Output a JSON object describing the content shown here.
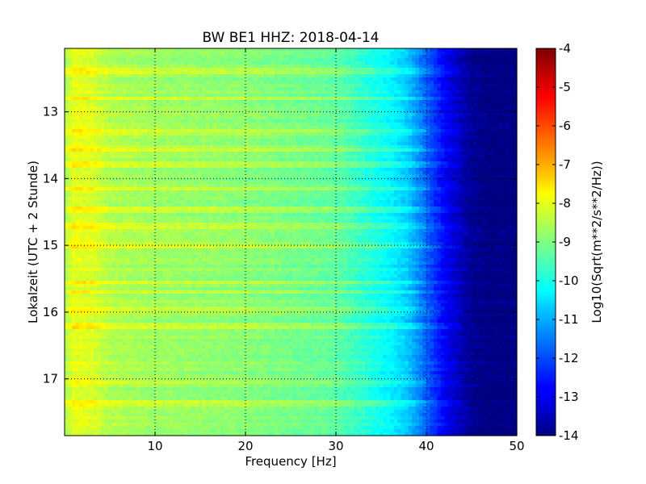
{
  "chart_data": {
    "type": "heatmap",
    "title": "BW BE1 HHZ: 2018-04-14",
    "xlabel": "Frequency [Hz]",
    "ylabel": "Lokalzeit (UTC + 2 Stunde)",
    "xlim": [
      0,
      50
    ],
    "ylim": [
      12.05,
      17.85
    ],
    "y_inverted": true,
    "x_ticks": [
      "10",
      "20",
      "30",
      "40",
      "50"
    ],
    "y_ticks": [
      "13",
      "14",
      "15",
      "16",
      "17"
    ],
    "grid": true,
    "colormap": "jet",
    "colorbar": {
      "label": "Log10(Sqrt(m**2/s**2/Hz))",
      "range": [
        -14,
        -4
      ],
      "ticks": [
        "-4",
        "-5",
        "-6",
        "-7",
        "-8",
        "-9",
        "-10",
        "-11",
        "-12",
        "-13",
        "-14"
      ]
    },
    "frequency_profile": {
      "frequency_hz": [
        0,
        1,
        3,
        5,
        10,
        15,
        20,
        25,
        30,
        33,
        36,
        38,
        40,
        42,
        44,
        45,
        47,
        50
      ],
      "log_amplitude": [
        -8.6,
        -8.0,
        -8.1,
        -8.5,
        -8.7,
        -8.8,
        -8.9,
        -9.1,
        -9.3,
        -9.8,
        -10.3,
        -10.8,
        -11.8,
        -12.8,
        -13.5,
        -13.8,
        -14,
        -14
      ]
    },
    "bright_lines_local_time": [
      12.4,
      12.8,
      13.3,
      13.55,
      13.8,
      14.15,
      14.45,
      14.7,
      15.0,
      15.55,
      15.7,
      15.95,
      16.2,
      17.05,
      17.35
    ]
  }
}
